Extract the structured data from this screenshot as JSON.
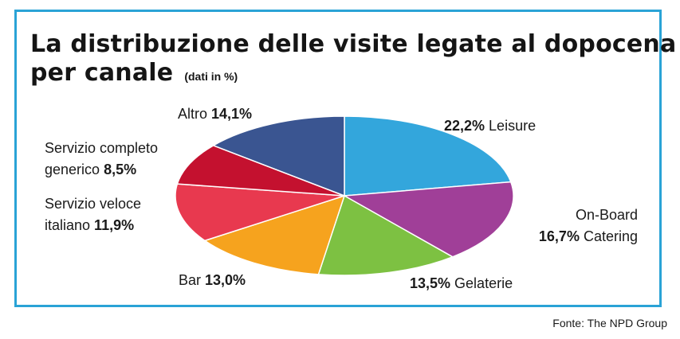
{
  "header": {
    "title_line1": "La distribuzione delle visite legate al dopocena",
    "title_line2": "per canale",
    "subtitle": "(dati in %)"
  },
  "footer": {
    "source": "Fonte: The NPD Group"
  },
  "chart_data": {
    "type": "pie",
    "title": "La distribuzione delle visite legate al dopocena per canale",
    "subtitle": "(dati in %)",
    "unit": "%",
    "slices": [
      {
        "name": "Leisure",
        "value": 22.2,
        "value_label": "22,2%",
        "color": "#33a6dc"
      },
      {
        "name": "On-Board Catering",
        "value": 16.7,
        "value_label": "16,7%",
        "color": "#a03f98"
      },
      {
        "name": "Gelaterie",
        "value": 13.5,
        "value_label": "13,5%",
        "color": "#7dc142"
      },
      {
        "name": "Bar",
        "value": 13.0,
        "value_label": "13,0%",
        "color": "#f6a31e"
      },
      {
        "name": "Servizio veloce italiano",
        "value": 11.9,
        "value_label": "11,9%",
        "color": "#e8394f"
      },
      {
        "name": "Servizio completo generico",
        "value": 8.5,
        "value_label": "8,5%",
        "color": "#c4112f"
      },
      {
        "name": "Altro",
        "value": 14.1,
        "value_label": "14,1%",
        "color": "#3a5591"
      }
    ]
  }
}
